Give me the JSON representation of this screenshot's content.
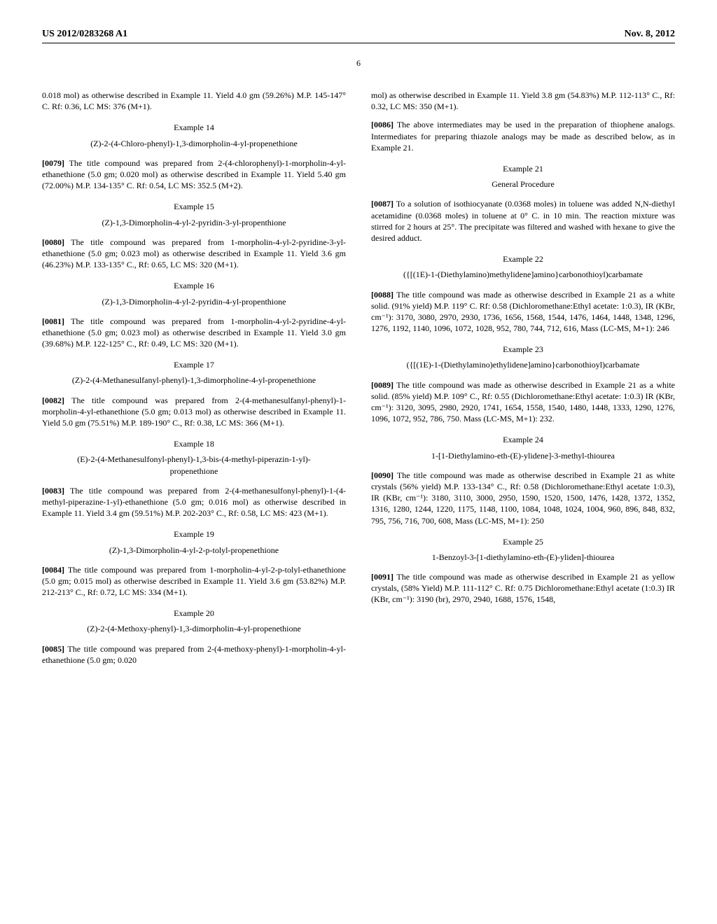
{
  "header": {
    "left": "US 2012/0283268 A1",
    "right": "Nov. 8, 2012"
  },
  "page_number": "6",
  "left_col": {
    "intro": "0.018 mol) as otherwise described in Example 11. Yield 4.0 gm (59.26%) M.P. 145-147° C. Rf: 0.36, LC MS: 376 (M+1).",
    "ex14_num": "Example 14",
    "ex14_title": "(Z)-2-(4-Chloro-phenyl)-1,3-dimorpholin-4-yl-propenethione",
    "ex14_para_num": "[0079]",
    "ex14_para": " The title compound was prepared from 2-(4-chlorophenyl)-1-morpholin-4-yl-ethanethione (5.0 gm; 0.020 mol) as otherwise described in Example 11. Yield 5.40 gm (72.00%) M.P. 134-135° C. Rf: 0.54, LC MS: 352.5 (M+2).",
    "ex15_num": "Example 15",
    "ex15_title": "(Z)-1,3-Dimorpholin-4-yl-2-pyridin-3-yl-propenthione",
    "ex15_para_num": "[0080]",
    "ex15_para": " The title compound was prepared from 1-morpholin-4-yl-2-pyridine-3-yl-ethanethione (5.0 gm; 0.023 mol) as otherwise described in Example 11. Yield 3.6 gm (46.23%) M.P. 133-135° C., Rf: 0.65, LC MS: 320 (M+1).",
    "ex16_num": "Example 16",
    "ex16_title": "(Z)-1,3-Dimorpholin-4-yl-2-pyridin-4-yl-propenthione",
    "ex16_para_num": "[0081]",
    "ex16_para": " The title compound was prepared from 1-morpholin-4-yl-2-pyridine-4-yl-ethanethione (5.0 gm; 0.023 mol) as otherwise described in Example 11. Yield 3.0 gm (39.68%) M.P. 122-125° C., Rf: 0.49, LC MS: 320 (M+1).",
    "ex17_num": "Example 17",
    "ex17_title": "(Z)-2-(4-Methanesulfanyl-phenyl)-1,3-dimorpholine-4-yl-propenethione",
    "ex17_para_num": "[0082]",
    "ex17_para": " The title compound was prepared from 2-(4-methanesulfanyl-phenyl)-1-morpholin-4-yl-ethanethione (5.0 gm; 0.013 mol) as otherwise described in Example 11. Yield 5.0 gm (75.51%) M.P. 189-190° C., Rf: 0.38, LC MS: 366 (M+1).",
    "ex18_num": "Example 18",
    "ex18_title": "(E)-2-(4-Methanesulfonyl-phenyl)-1,3-bis-(4-methyl-piperazin-1-yl)-propenethione",
    "ex18_para_num": "[0083]",
    "ex18_para": " The title compound was prepared from 2-(4-methanesulfonyl-phenyl)-1-(4-methyl-piperazine-1-yl)-ethanethione (5.0 gm; 0.016 mol) as otherwise described in Example 11. Yield 3.4 gm (59.51%) M.P. 202-203° C., Rf: 0.58, LC MS: 423 (M+1).",
    "ex19_num": "Example 19",
    "ex19_title": "(Z)-1,3-Dimorpholin-4-yl-2-p-tolyl-propenethione",
    "ex19_para_num": "[0084]",
    "ex19_para": " The title compound was prepared from 1-morpholin-4-yl-2-p-tolyl-ethanethione (5.0 gm; 0.015 mol) as otherwise described in Example 11. Yield 3.6 gm (53.82%) M.P. 212-213° C., Rf: 0.72, LC MS: 334 (M+1).",
    "ex20_num": "Example 20",
    "ex20_title": "(Z)-2-(4-Methoxy-phenyl)-1,3-dimorpholin-4-yl-propenethione",
    "ex20_para_num": "[0085]",
    "ex20_para": " The title compound was prepared from 2-(4-methoxy-phenyl)-1-morpholin-4-yl-ethanethione (5.0 gm; 0.020"
  },
  "right_col": {
    "cont": "mol) as otherwise described in Example 11. Yield 3.8 gm (54.83%) M.P. 112-113° C., Rf: 0.32, LC MS: 350 (M+1).",
    "p0086_num": "[0086]",
    "p0086": " The above intermediates may be used in the preparation of thiophene analogs. Intermediates for preparing thiazole analogs may be made as described below, as in Example 21.",
    "ex21_num": "Example 21",
    "ex21_title": "General Procedure",
    "ex21_para_num": "[0087]",
    "ex21_para": " To a solution of isothiocyanate (0.0368 moles) in toluene was added N,N-diethyl acetamidine (0.0368 moles) in toluene at 0° C. in 10 min. The reaction mixture was stirred for 2 hours at 25°. The precipitate was filtered and washed with hexane to give the desired adduct.",
    "ex22_num": "Example 22",
    "ex22_title": "({[(1E)-1-(Diethylamino)methylidene]amino}carbonothioyl)carbamate",
    "ex22_para_num": "[0088]",
    "ex22_para": " The title compound was made as otherwise described in Example 21 as a white solid. (91% yield) M.P. 119° C. Rf: 0.58 (Dichloromethane:Ethyl acetate: 1:0.3), IR (KBr, cm⁻¹): 3170, 3080, 2970, 2930, 1736, 1656, 1568, 1544, 1476, 1464, 1448, 1348, 1296, 1276, 1192, 1140, 1096, 1072, 1028, 952, 780, 744, 712, 616, Mass (LC-MS, M+1): 246",
    "ex23_num": "Example 23",
    "ex23_title": "({[(1E)-1-(Diethylamino)ethylidene]amino}carbonothioyl)carbamate",
    "ex23_para_num": "[0089]",
    "ex23_para": " The title compound was made as otherwise described in Example 21 as a white solid. (85% yield) M.P. 109° C., Rf: 0.55 (Dichloromethane:Ethyl acetate: 1:0.3) IR (KBr, cm⁻¹): 3120, 3095, 2980, 2920, 1741, 1654, 1558, 1540, 1480, 1448, 1333, 1290, 1276, 1096, 1072, 952, 786, 750. Mass (LC-MS, M+1): 232.",
    "ex24_num": "Example 24",
    "ex24_title": "1-[1-Diethylamino-eth-(E)-ylidene]-3-methyl-thiourea",
    "ex24_para_num": "[0090]",
    "ex24_para": " The title compound was made as otherwise described in Example 21 as white crystals (56% yield) M.P. 133-134° C., Rf: 0.58 (Dichloromethane:Ethyl acetate 1:0.3), IR (KBr, cm⁻¹): 3180, 3110, 3000, 2950, 1590, 1520, 1500, 1476, 1428, 1372, 1352, 1316, 1280, 1244, 1220, 1175, 1148, 1100, 1084, 1048, 1024, 1004, 960, 896, 848, 832, 795, 756, 716, 700, 608, Mass (LC-MS, M+1): 250",
    "ex25_num": "Example 25",
    "ex25_title": "1-Benzoyl-3-[1-diethylamino-eth-(E)-yliden]-thiourea",
    "ex25_para_num": "[0091]",
    "ex25_para": " The title compound was made as otherwise described in Example 21 as yellow crystals, (58% Yield) M.P. 111-112° C. Rf: 0.75 Dichloromethane:Ethyl acetate (1:0.3) IR (KBr, cm⁻¹): 3190 (br), 2970, 2940, 1688, 1576, 1548,"
  }
}
